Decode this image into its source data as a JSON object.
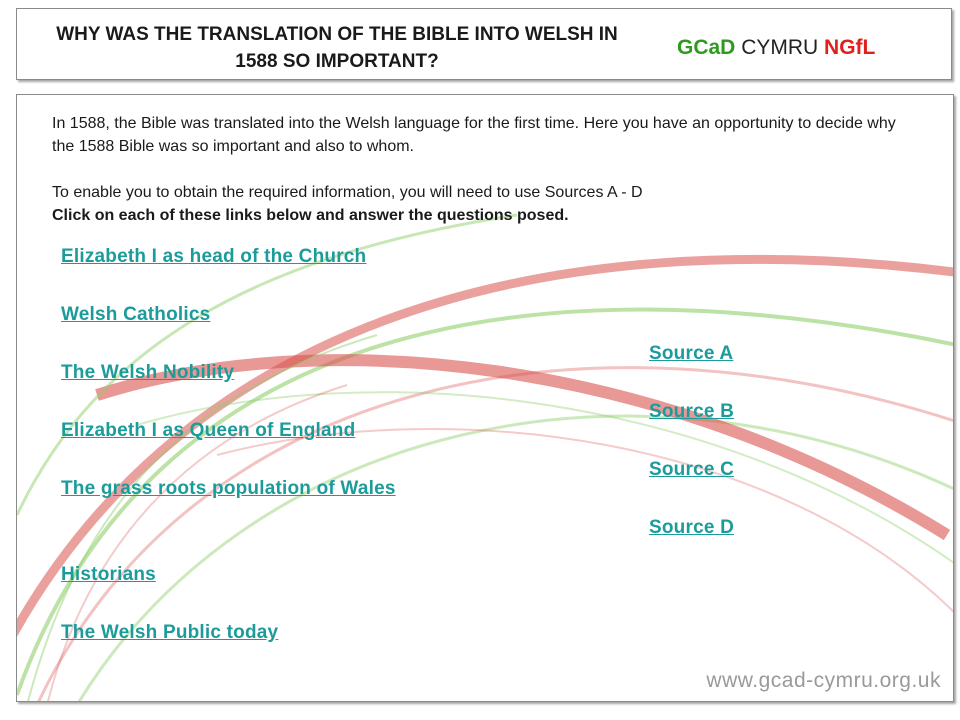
{
  "header": {
    "title": "WHY WAS THE TRANSLATION OF THE BIBLE INTO WELSH IN 1588 SO IMPORTANT?",
    "logo": {
      "part1": "GCaD",
      "part2": " CYMRU ",
      "part3": "NGfL"
    }
  },
  "intro": {
    "para1": "In 1588, the Bible was translated into the Welsh language for the first time. Here you have an opportunity to decide why the 1588 Bible was so important and also to whom.",
    "para2": "To enable you to obtain the required information, you will need to use Sources A - D",
    "para3": "Click on each of these links below and answer the questions posed."
  },
  "topic_links": [
    "Elizabeth I as head of the Church",
    "Welsh Catholics",
    "The Welsh Nobility",
    "Elizabeth I as Queen of England",
    "The grass roots population of Wales",
    "Historians",
    "The Welsh Public today"
  ],
  "source_links": [
    "Source A",
    "Source B",
    "Source C",
    "Source D"
  ],
  "footer": {
    "url": "www.gcad-cymru.org.uk"
  },
  "colors": {
    "link": "#1c9b9b",
    "logo_green": "#2e9b1f",
    "logo_red": "#e0201c",
    "swoosh_red": "#d9534f",
    "swoosh_green": "#8fcf6a"
  }
}
